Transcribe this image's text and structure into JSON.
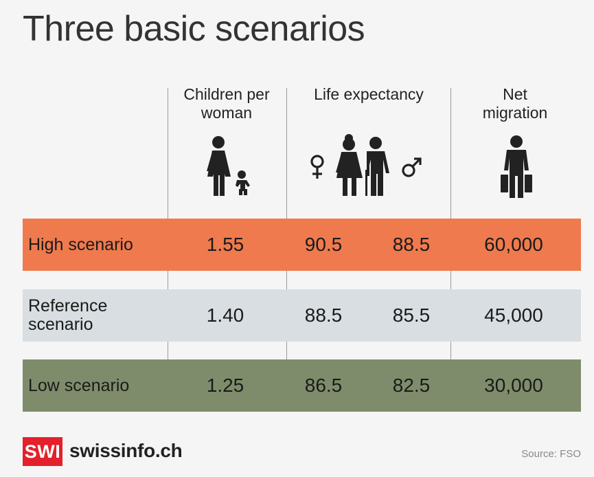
{
  "title": "Three basic scenarios",
  "columns": {
    "children": "Children per woman",
    "life": "Life expectancy",
    "migration": "Net migration"
  },
  "icons": {
    "children": "woman-with-child-icon",
    "life_female_symbol": "female-symbol-icon",
    "life_people": "elderly-couple-icon",
    "life_male_symbol": "male-symbol-icon",
    "migration": "traveller-with-luggage-icon"
  },
  "rows": [
    {
      "label": "High scenario",
      "children": "1.55",
      "life_female": "90.5",
      "life_male": "88.5",
      "migration": "60,000",
      "color": "#ef7a4e"
    },
    {
      "label": "Reference scenario",
      "children": "1.40",
      "life_female": "88.5",
      "life_male": "85.5",
      "migration": "45,000",
      "color": "#d8dee1"
    },
    {
      "label": "Low scenario",
      "children": "1.25",
      "life_female": "86.5",
      "life_male": "82.5",
      "migration": "30,000",
      "color": "#7f8c6b"
    }
  ],
  "footer": {
    "logo": "SWI",
    "brand": "swissinfo.ch",
    "source": "Source: FSO",
    "logo_color": "#e3202b"
  }
}
